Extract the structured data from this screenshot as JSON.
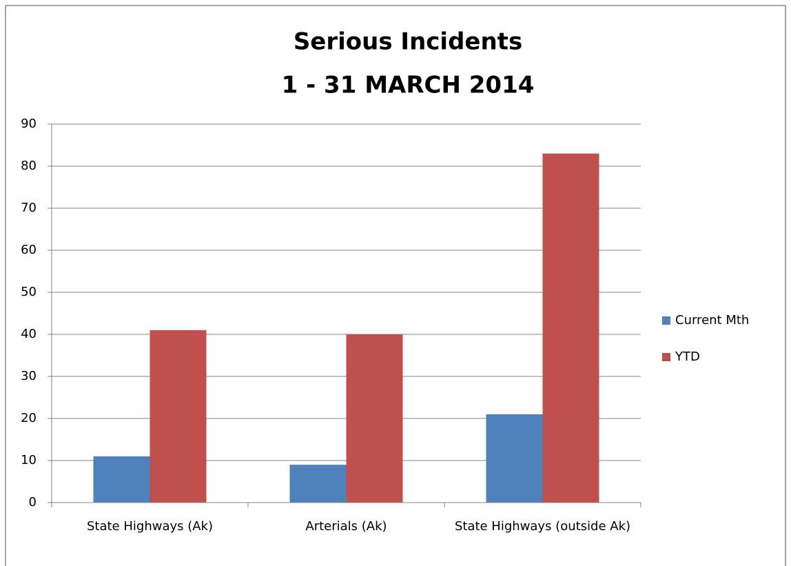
{
  "chart_data": {
    "type": "bar",
    "title": [
      "Serious Incidents",
      "1 - 31 MARCH 2014"
    ],
    "categories": [
      "State Highways (Ak)",
      "Arterials (Ak)",
      "State Highways (outside Ak)"
    ],
    "series": [
      {
        "name": "Current Mth",
        "color": "#4f81bd",
        "values": [
          11,
          9,
          21
        ]
      },
      {
        "name": "YTD",
        "color": "#c0504d",
        "values": [
          41,
          40,
          83
        ]
      }
    ],
    "ylim": [
      0,
      90
    ],
    "yticks": [
      0,
      10,
      20,
      30,
      40,
      50,
      60,
      70,
      80,
      90
    ],
    "grid": true,
    "legend": "right"
  }
}
